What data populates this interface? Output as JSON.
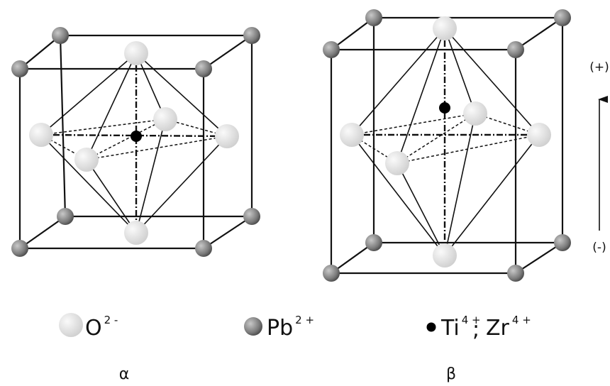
{
  "legend": [
    {
      "symbol": "O",
      "charge": "2 -"
    },
    {
      "symbol": "Pb",
      "charge": "2 +"
    },
    {
      "symbol": "Ti",
      "charge": "4 +"
    },
    {
      "symbol": "Zr",
      "charge": "4 +"
    }
  ],
  "separator": ";",
  "polarity": {
    "positive": "(+)",
    "negative": "(-)"
  },
  "panels": [
    "α",
    "β"
  ]
}
